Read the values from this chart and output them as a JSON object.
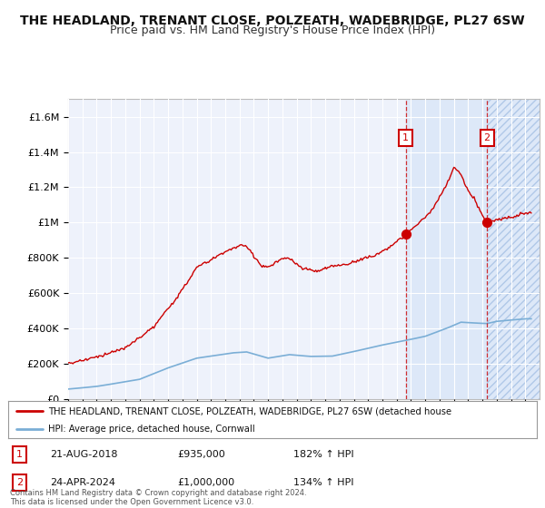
{
  "title": "THE HEADLAND, TRENANT CLOSE, POLZEATH, WADEBRIDGE, PL27 6SW",
  "subtitle": "Price paid vs. HM Land Registry's House Price Index (HPI)",
  "title_fontsize": 10,
  "subtitle_fontsize": 9,
  "background_color": "#ffffff",
  "plot_bg_color": "#eef2fb",
  "grid_color": "#ffffff",
  "hpi_color": "#7aaed6",
  "price_color": "#cc0000",
  "shade1_color": "#dde8f8",
  "ylim": [
    0,
    1700000
  ],
  "yticks": [
    0,
    200000,
    400000,
    600000,
    800000,
    1000000,
    1200000,
    1400000,
    1600000
  ],
  "ytick_labels": [
    "£0",
    "£200K",
    "£400K",
    "£600K",
    "£800K",
    "£1M",
    "£1.2M",
    "£1.4M",
    "£1.6M"
  ],
  "sale1_x": 2018.64,
  "sale1_y": 935000,
  "sale1_label": "1",
  "sale1_date": "21-AUG-2018",
  "sale1_price": "£935,000",
  "sale1_hpi": "182% ↑ HPI",
  "sale2_x": 2024.32,
  "sale2_y": 1000000,
  "sale2_label": "2",
  "sale2_date": "24-APR-2024",
  "sale2_price": "£1,000,000",
  "sale2_hpi": "134% ↑ HPI",
  "legend_line1": "THE HEADLAND, TRENANT CLOSE, POLZEATH, WADEBRIDGE, PL27 6SW (detached house",
  "legend_line2": "HPI: Average price, detached house, Cornwall",
  "footnote": "Contains HM Land Registry data © Crown copyright and database right 2024.\nThis data is licensed under the Open Government Licence v3.0.",
  "xmin": 1995,
  "xmax": 2028
}
